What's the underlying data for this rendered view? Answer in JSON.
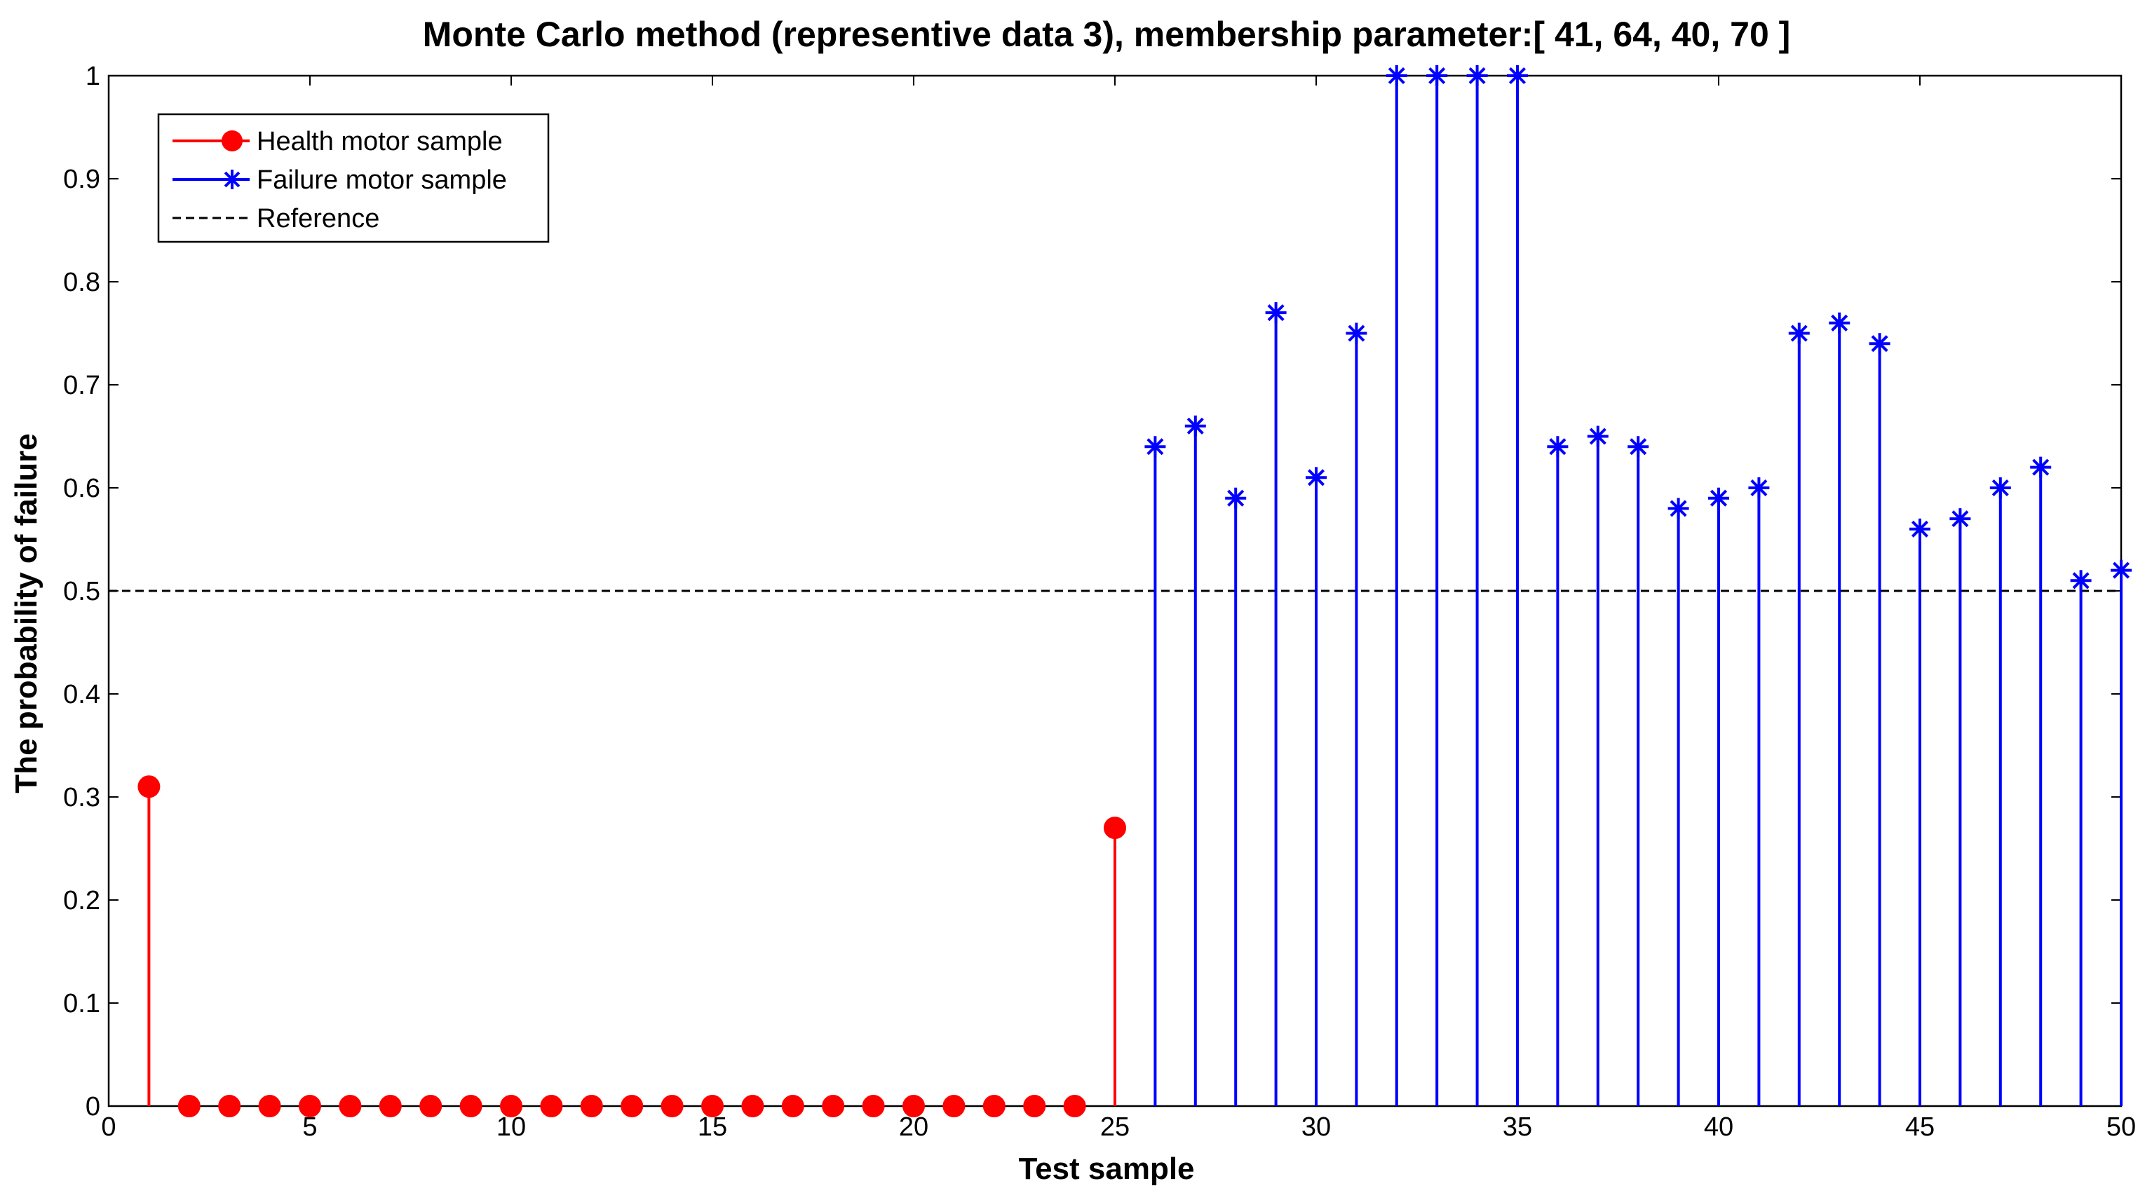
{
  "chart_data": {
    "type": "stem",
    "title": "Monte Carlo method (representive data 3), membership parameter:[  41,  64,  40,  70  ]",
    "xlabel": "Test sample",
    "ylabel": "The probability of failure",
    "xlim": [
      0,
      50
    ],
    "ylim": [
      0,
      1
    ],
    "x_ticks": [
      0,
      5,
      10,
      15,
      20,
      25,
      30,
      35,
      40,
      45,
      50
    ],
    "y_ticks": [
      0,
      0.1,
      0.2,
      0.3,
      0.4,
      0.5,
      0.6,
      0.7,
      0.8,
      0.9,
      1
    ],
    "grid": false,
    "legend_position": "top-left",
    "series": [
      {
        "name": "Health motor sample",
        "color": "#ff0000",
        "marker": "filled-circle",
        "x": [
          1,
          2,
          3,
          4,
          5,
          6,
          7,
          8,
          9,
          10,
          11,
          12,
          13,
          14,
          15,
          16,
          17,
          18,
          19,
          20,
          21,
          22,
          23,
          24,
          25
        ],
        "values": [
          0.31,
          0,
          0,
          0,
          0,
          0,
          0,
          0,
          0,
          0,
          0,
          0,
          0,
          0,
          0,
          0,
          0,
          0,
          0,
          0,
          0,
          0,
          0,
          0,
          0.27
        ]
      },
      {
        "name": "Failure motor sample",
        "color": "#0000ff",
        "marker": "asterisk",
        "x": [
          26,
          27,
          28,
          29,
          30,
          31,
          32,
          33,
          34,
          35,
          36,
          37,
          38,
          39,
          40,
          41,
          42,
          43,
          44,
          45,
          46,
          47,
          48,
          49,
          50
        ],
        "values": [
          0.64,
          0.66,
          0.59,
          0.77,
          0.61,
          0.75,
          1.0,
          1.0,
          1.0,
          1.0,
          0.64,
          0.65,
          0.64,
          0.58,
          0.59,
          0.6,
          0.75,
          0.76,
          0.74,
          0.56,
          0.57,
          0.6,
          0.62,
          0.51,
          0.52
        ]
      }
    ],
    "reference": {
      "name": "Reference",
      "value": 0.5,
      "color": "#000000",
      "style": "dashed"
    }
  }
}
